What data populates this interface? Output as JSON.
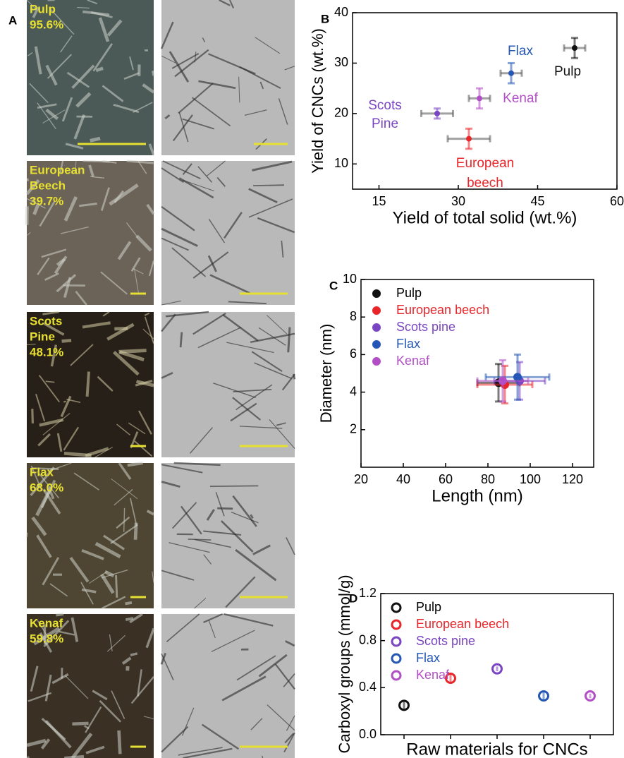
{
  "photo_panel": {
    "label": "A",
    "rows": [
      {
        "lines": [
          "Pulp",
          "95.6%"
        ]
      },
      {
        "lines": [
          "European",
          "Beech",
          "39.7%"
        ]
      },
      {
        "lines": [
          "Scots",
          "Pine",
          "48.1%"
        ]
      },
      {
        "lines": [
          "Flax",
          "68.0%"
        ]
      },
      {
        "lines": [
          "Kenaf",
          "59.8%"
        ]
      }
    ]
  },
  "chart_data": [
    {
      "type": "scatter",
      "panel_label": "B",
      "x_label": "Yield of total solid (wt.%)",
      "y_label": "Yield of CNCs (wt.%)",
      "xlim": [
        10,
        60
      ],
      "xticks": [
        15,
        30,
        45,
        60
      ],
      "ylim": [
        5,
        40
      ],
      "yticks": [
        10,
        20,
        30,
        40
      ],
      "series": [
        {
          "label": [
            "Pulp"
          ],
          "color": "#111111",
          "x": [
            52
          ],
          "x_err": [
            2
          ],
          "values": [
            33
          ],
          "y_err": [
            2
          ]
        },
        {
          "label": [
            "European",
            "beech"
          ],
          "color": "#e8262a",
          "x": [
            32
          ],
          "x_err": [
            4
          ],
          "values": [
            15
          ],
          "y_err": [
            2
          ]
        },
        {
          "label": [
            "Scots",
            "Pine"
          ],
          "color": "#7a45c2",
          "x": [
            26
          ],
          "x_err": [
            3
          ],
          "values": [
            20
          ],
          "y_err": [
            1
          ]
        },
        {
          "label": [
            "Flax"
          ],
          "color": "#2457b5",
          "x": [
            40
          ],
          "x_err": [
            2
          ],
          "values": [
            28
          ],
          "y_err": [
            2
          ]
        },
        {
          "label": [
            "Kenaf"
          ],
          "color": "#b24fc6",
          "x": [
            34
          ],
          "x_err": [
            2
          ],
          "values": [
            23
          ],
          "y_err": [
            2
          ]
        }
      ]
    },
    {
      "type": "scatter",
      "panel_label": "C",
      "x_label": "Length (nm)",
      "y_label": "Diameter (nm)",
      "legend": "top-left",
      "xlim": [
        20,
        130
      ],
      "xticks": [
        20,
        40,
        60,
        80,
        100,
        120
      ],
      "ylim": [
        0,
        10
      ],
      "yticks": [
        2,
        4,
        6,
        8,
        10
      ],
      "series": [
        {
          "name": "Pulp",
          "color": "#111111",
          "x": [
            85
          ],
          "x_err": [
            10
          ],
          "values": [
            4.5
          ],
          "y_err": [
            1
          ]
        },
        {
          "name": "European beech",
          "color": "#e8262a",
          "x": [
            88
          ],
          "x_err": [
            13
          ],
          "values": [
            4.4
          ],
          "y_err": [
            1
          ]
        },
        {
          "name": "Scots pine",
          "color": "#7a45c2",
          "x": [
            95
          ],
          "x_err": [
            12
          ],
          "values": [
            4.6
          ],
          "y_err": [
            1
          ]
        },
        {
          "name": "Flax",
          "color": "#2457b5",
          "x": [
            94
          ],
          "x_err": [
            15
          ],
          "values": [
            4.8
          ],
          "y_err": [
            1.2
          ]
        },
        {
          "name": "Kenaf",
          "color": "#b24fc6",
          "x": [
            87
          ],
          "x_err": [
            12
          ],
          "values": [
            4.6
          ],
          "y_err": [
            1.1
          ]
        }
      ]
    },
    {
      "type": "dot",
      "panel_label": "D",
      "x_label": "Raw materials for CNCs",
      "y_label": "Carboxyl groups (mmol/g)",
      "legend": "top-left",
      "categories": [
        null,
        null,
        null,
        null,
        null
      ],
      "ylim": [
        0,
        1.2
      ],
      "yticks": [
        {
          "value": 0,
          "label": "0.0"
        },
        0.4,
        0.8,
        1.2
      ],
      "series": [
        {
          "name": "Pulp",
          "color": "#111111",
          "values": [
            0.25,
            null,
            null,
            null,
            null
          ],
          "y_err": [
            0.03,
            null,
            null,
            null,
            null
          ]
        },
        {
          "name": "European beech",
          "color": "#e8262a",
          "values": [
            null,
            0.48,
            null,
            null,
            null
          ],
          "y_err": [
            null,
            0.03,
            null,
            null,
            null
          ]
        },
        {
          "name": "Scots pine",
          "color": "#7a45c2",
          "values": [
            null,
            null,
            0.56,
            null,
            null
          ],
          "y_err": [
            null,
            null,
            0.02,
            null,
            null
          ]
        },
        {
          "name": "Flax",
          "color": "#2457b5",
          "values": [
            null,
            null,
            null,
            0.33,
            null
          ],
          "y_err": [
            null,
            null,
            null,
            0.04,
            null
          ]
        },
        {
          "name": "Kenaf",
          "color": "#b24fc6",
          "values": [
            null,
            null,
            null,
            null,
            0.33
          ],
          "y_err": [
            null,
            null,
            null,
            null,
            0.02
          ]
        }
      ]
    }
  ]
}
